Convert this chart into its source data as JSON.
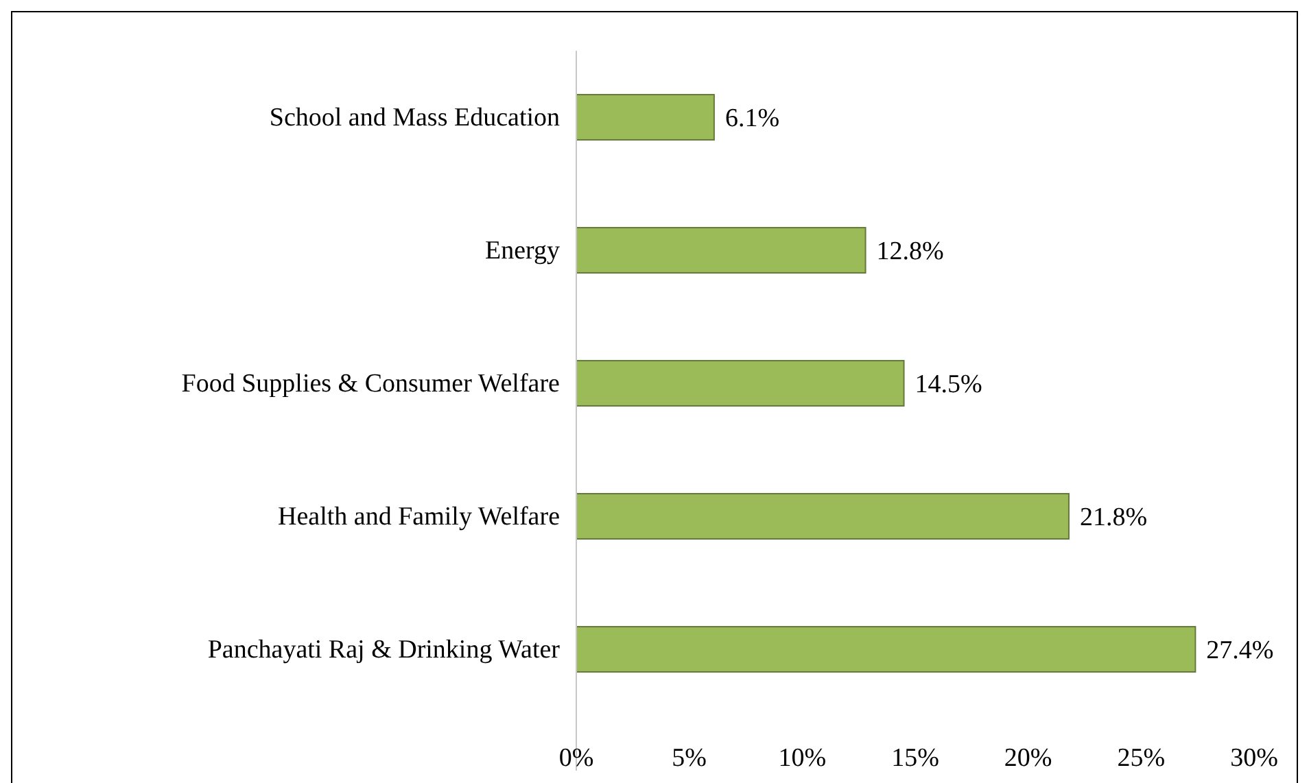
{
  "chart_data": {
    "type": "bar",
    "orientation": "horizontal",
    "categories": [
      "School and Mass Education",
      "Energy",
      "Food Supplies & Consumer Welfare",
      "Health and Family Welfare",
      "Panchayati Raj & Drinking Water"
    ],
    "values": [
      6.1,
      12.8,
      14.5,
      21.8,
      27.4
    ],
    "value_labels": [
      "6.1%",
      "12.8%",
      "14.5%",
      "21.8%",
      "27.4%"
    ],
    "color": "#9bbb59",
    "xlim": [
      0,
      30
    ],
    "xticks": [
      {
        "value": 0,
        "label": "0%"
      },
      {
        "value": 5,
        "label": "5%"
      },
      {
        "value": 10,
        "label": "10%"
      },
      {
        "value": 15,
        "label": "15%"
      },
      {
        "value": 20,
        "label": "20%"
      },
      {
        "value": 25,
        "label": "25%"
      },
      {
        "value": 30,
        "label": "30%"
      }
    ],
    "grid": false
  }
}
